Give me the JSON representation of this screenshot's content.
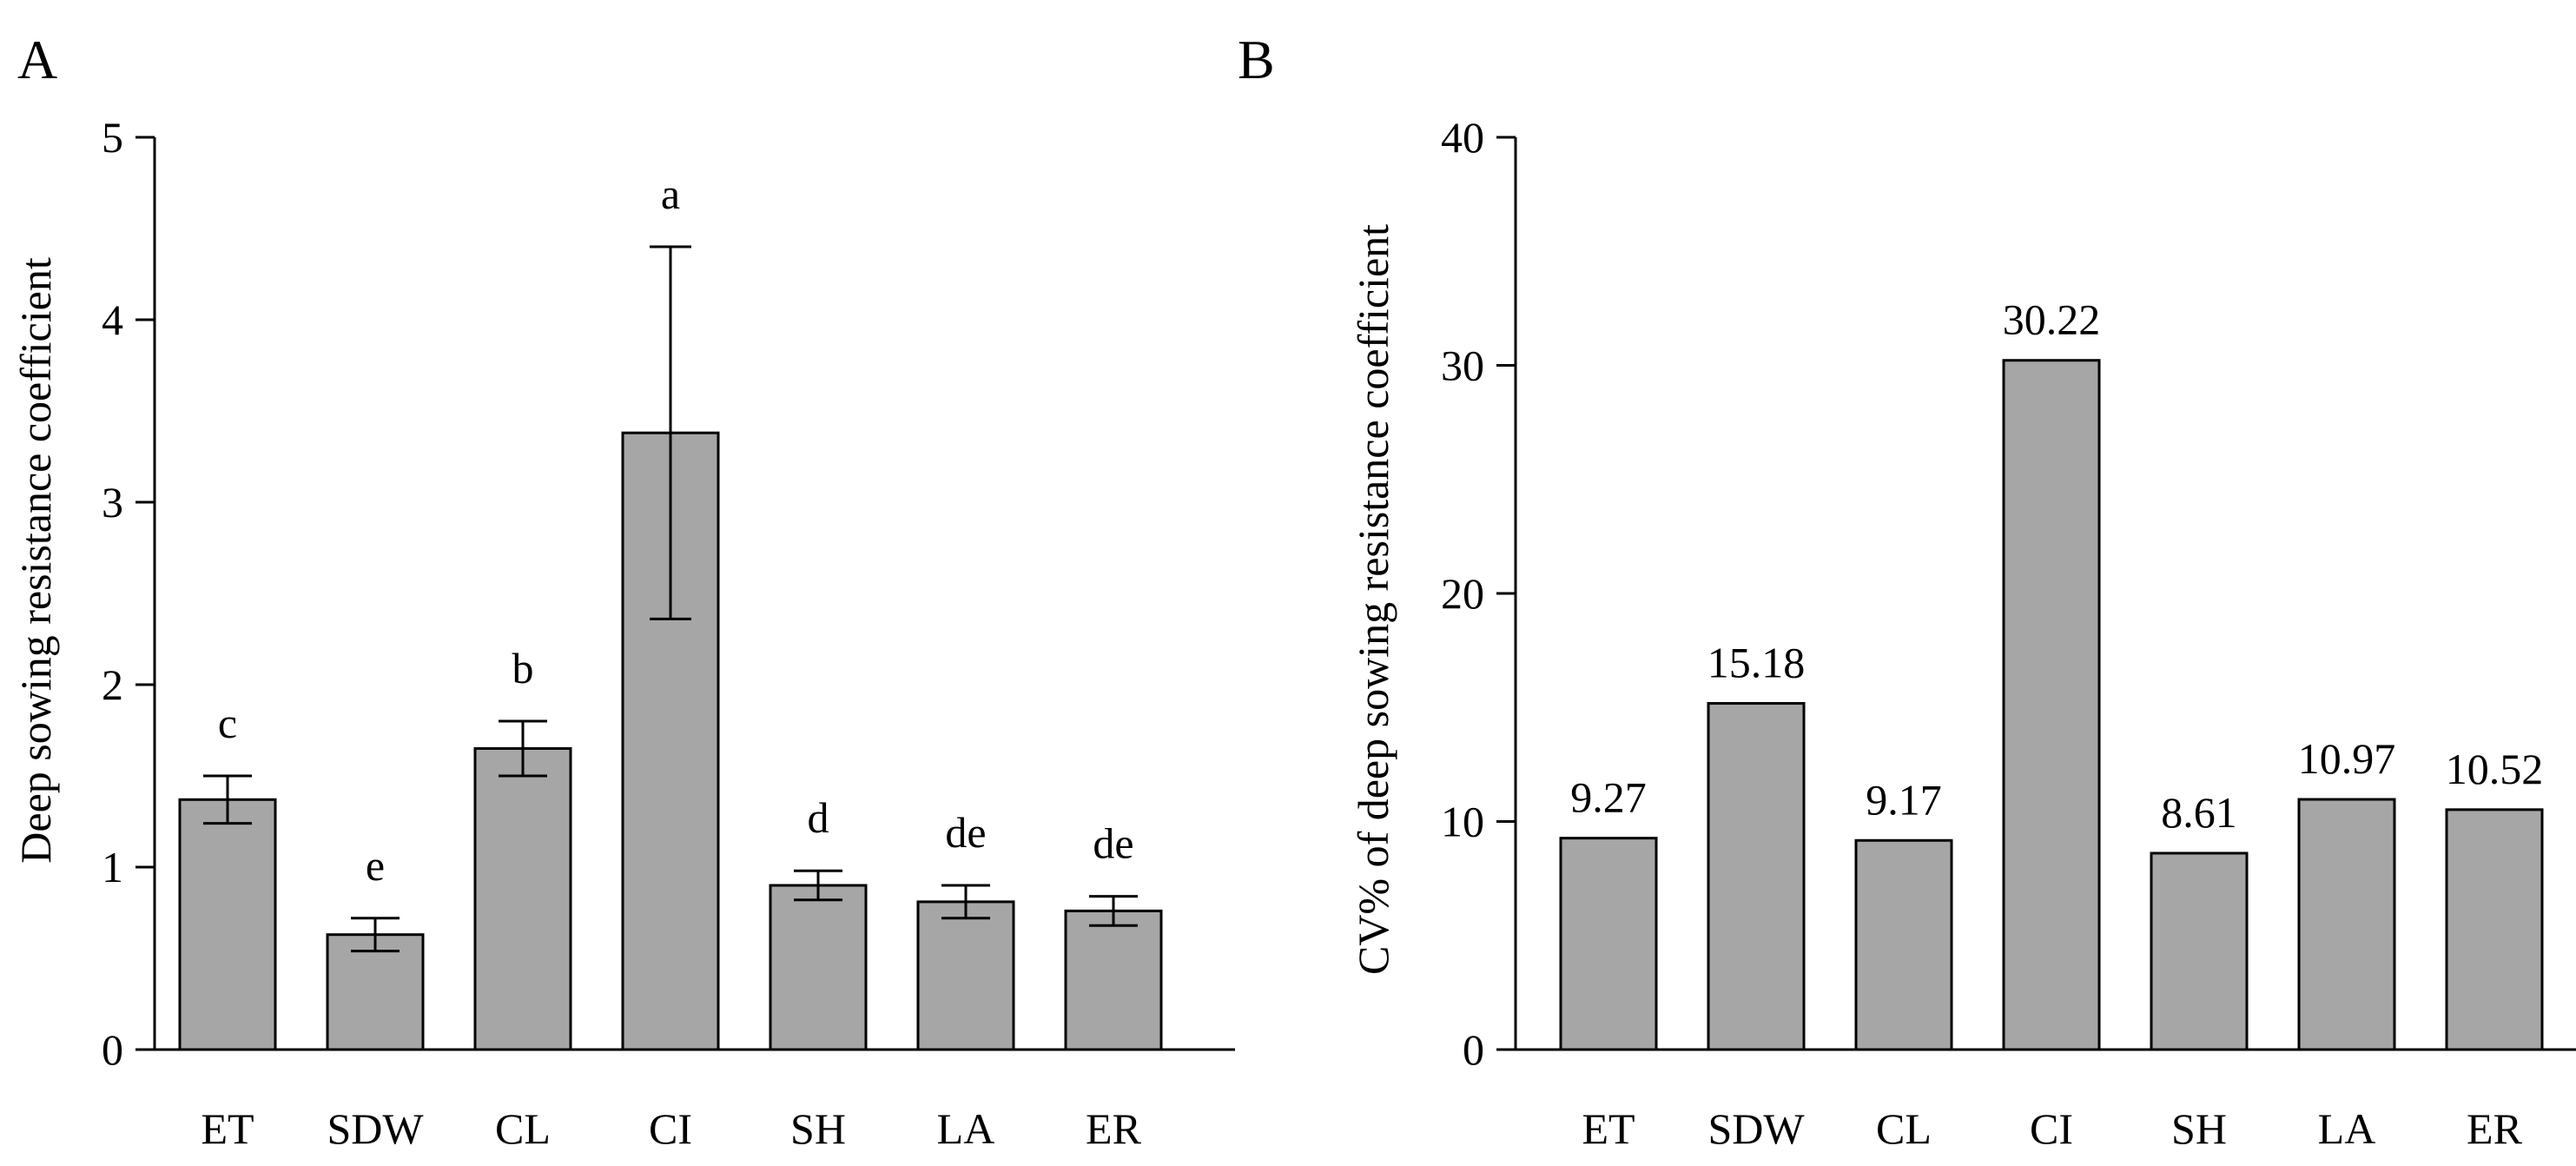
{
  "chart_data": [
    {
      "panel": "A",
      "type": "bar",
      "categories": [
        "ET",
        "SDW",
        "CL",
        "CI",
        "SH",
        "LA",
        "ER"
      ],
      "values": [
        1.37,
        0.63,
        1.65,
        3.38,
        0.9,
        0.81,
        0.76
      ],
      "errors": [
        0.13,
        0.09,
        0.15,
        1.02,
        0.08,
        0.09,
        0.08
      ],
      "significance": [
        "c",
        "e",
        "b",
        "a",
        "d",
        "de",
        "de"
      ],
      "ylabel": "Deep sowing resistance coefficient",
      "xlabel": "",
      "ylim": [
        0,
        5
      ],
      "yticks": [
        0,
        1,
        2,
        3,
        4,
        5
      ],
      "bar_color": "#a6a6a6"
    },
    {
      "panel": "B",
      "type": "bar",
      "categories": [
        "ET",
        "SDW",
        "CL",
        "CI",
        "SH",
        "LA",
        "ER"
      ],
      "values": [
        9.27,
        15.18,
        9.17,
        30.22,
        8.61,
        10.97,
        10.52
      ],
      "value_labels": [
        "9.27",
        "15.18",
        "9.17",
        "30.22",
        "8.61",
        "10.97",
        "10.52"
      ],
      "ylabel": "CV% of  deep sowing resistance coefficient",
      "xlabel": "",
      "ylim": [
        0,
        40
      ],
      "yticks": [
        0,
        10,
        20,
        30,
        40
      ],
      "bar_color": "#a6a6a6"
    }
  ]
}
